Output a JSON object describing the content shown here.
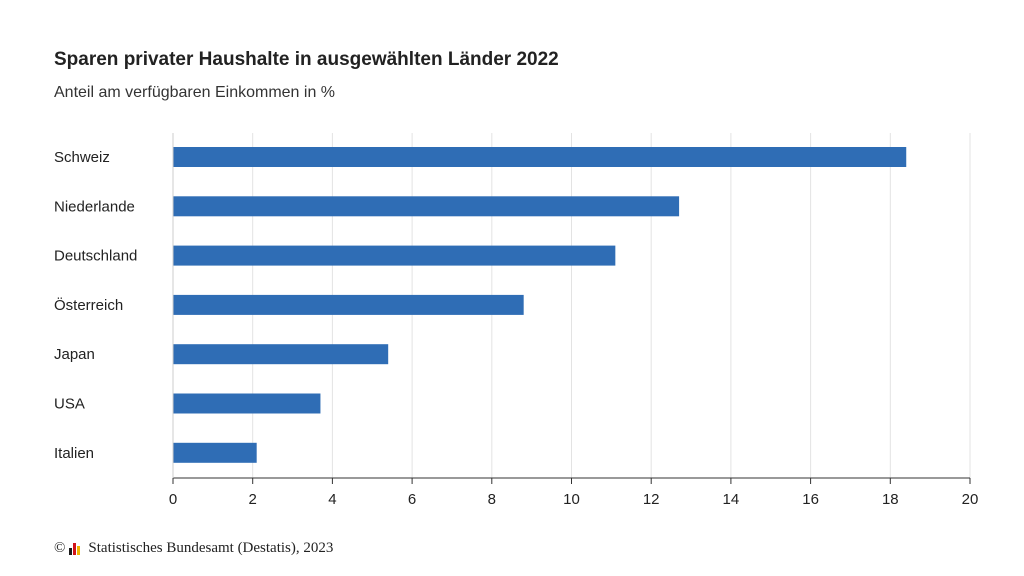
{
  "chart_data": {
    "type": "bar",
    "orientation": "horizontal",
    "title": "Sparen privater Haushalte in ausgewählten Länder 2022",
    "subtitle": "Anteil am verfügbaren Einkommen in %",
    "categories": [
      "Schweiz",
      "Niederlande",
      "Deutschland",
      "Österreich",
      "Japan",
      "USA",
      "Italien"
    ],
    "values": [
      18.4,
      12.7,
      11.1,
      8.8,
      5.4,
      3.7,
      2.1
    ],
    "xlim": [
      0,
      20
    ],
    "xticks": [
      "0",
      "2",
      "4",
      "6",
      "8",
      "10",
      "12",
      "14",
      "16",
      "18",
      "20"
    ],
    "grid": true,
    "bar_color": "#2f6db5",
    "grid_color": "#e3e3e3"
  },
  "footer": {
    "copyright_symbol": "©",
    "logo_icon": "destatis-logo-icon",
    "source": "Statistisches Bundesamt (Destatis), 2023"
  }
}
